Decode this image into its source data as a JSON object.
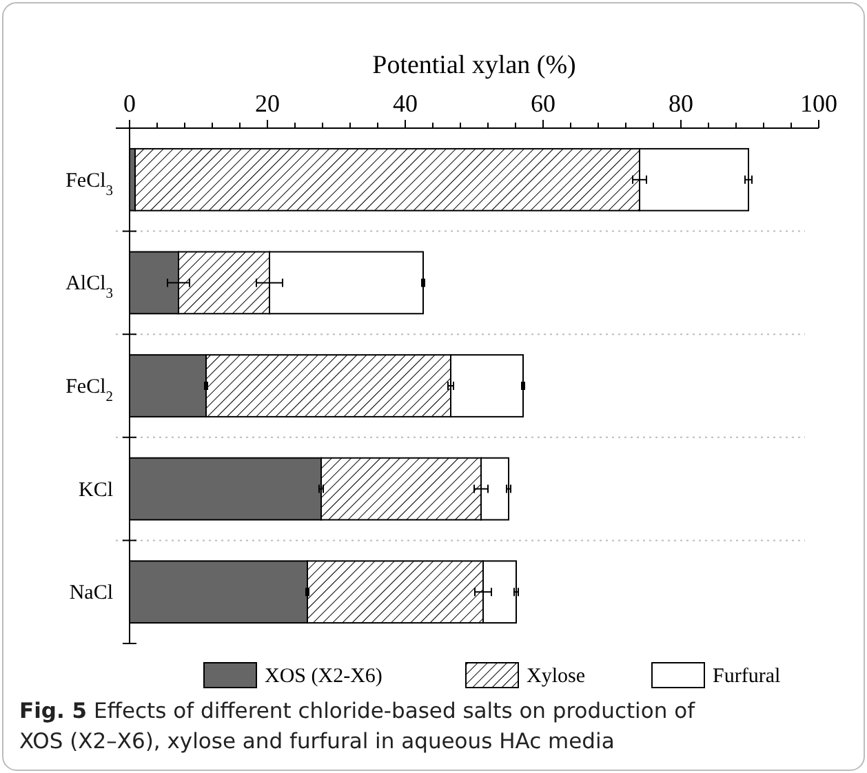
{
  "chart_data": {
    "type": "bar",
    "orientation": "horizontal",
    "stacked": true,
    "xlabel": "Potential xylan (%)",
    "title": "Fig. 5",
    "annotations": [
      "Effects of different chloride-based salts on production of XOS (X2–X6), xylose and furfural in aqueous HAc media"
    ],
    "categories": [
      "FeCl$_{3}$",
      "AlCl$_{3}$",
      "FeCl$_{2}$",
      "KCl",
      "NaCl"
    ],
    "series": [
      {
        "name": "XOS (X2-X6)",
        "color": "#666666",
        "values": [
          0.8,
          7.1,
          11.1,
          27.8,
          25.8
        ],
        "errors": [
          null,
          1.6,
          0.2,
          0.3,
          0.2
        ]
      },
      {
        "name": "Xylose",
        "color": "#000000",
        "values": [
          73.2,
          13.2,
          35.5,
          23.2,
          25.5
        ],
        "errors": [
          1,
          1.9,
          0.4,
          1,
          1.2
        ]
      },
      {
        "name": "Furfural",
        "color": "#ffffff",
        "values": [
          15.8,
          22.3,
          10.5,
          4.0,
          4.8
        ],
        "errors": [
          0.5,
          0.2,
          0.2,
          0.3,
          0.3
        ]
      }
    ],
    "xlim": [
      0,
      100
    ],
    "xticks": [
      0,
      {
        "value": 4,
        "label": null
      },
      {
        "value": 8,
        "label": null
      },
      {
        "value": 12,
        "label": null
      },
      {
        "value": 16,
        "label": null
      },
      20,
      {
        "value": 24,
        "label": null
      },
      {
        "value": 28,
        "label": null
      },
      {
        "value": 32,
        "label": null
      },
      {
        "value": 36,
        "label": null
      },
      40,
      {
        "value": 44,
        "label": null
      },
      {
        "value": 48,
        "label": null
      },
      {
        "value": 52,
        "label": null
      },
      {
        "value": 56,
        "label": null
      },
      60,
      {
        "value": 64,
        "label": null
      },
      {
        "value": 68,
        "label": null
      },
      {
        "value": 72,
        "label": null
      },
      {
        "value": 76,
        "label": null
      },
      80,
      {
        "value": 84,
        "label": null
      },
      {
        "value": 88,
        "label": null
      },
      {
        "value": 92,
        "label": null
      },
      {
        "value": 96,
        "label": null
      },
      100
    ],
    "grid": "y",
    "legend": "bottom"
  }
}
